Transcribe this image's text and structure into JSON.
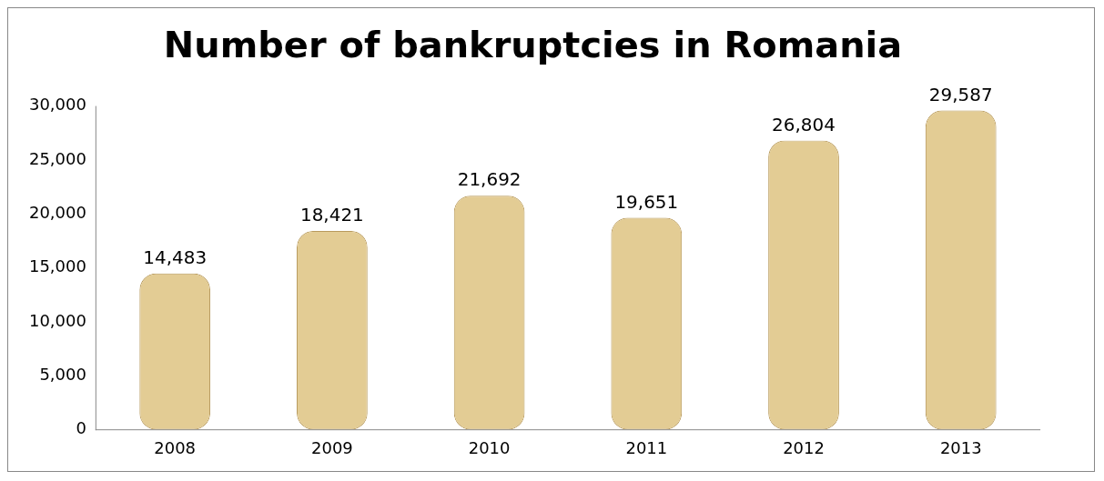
{
  "chart_data": {
    "type": "bar",
    "title": "Number of bankruptcies in Romania",
    "categories": [
      "2008",
      "2009",
      "2010",
      "2011",
      "2012",
      "2013"
    ],
    "values": [
      14483,
      18421,
      21692,
      19651,
      26804,
      29587
    ],
    "color": "#e3cc94",
    "ylim": [
      0,
      30000
    ],
    "yticks": [
      {
        "value": 0,
        "label": "0"
      },
      {
        "value": 5000,
        "label": "5,000"
      },
      {
        "value": 10000,
        "label": "10,000"
      },
      {
        "value": 15000,
        "label": "15,000"
      },
      {
        "value": 20000,
        "label": "20,000"
      },
      {
        "value": 25000,
        "label": "25,000"
      },
      {
        "value": 30000,
        "label": "30,000"
      }
    ],
    "value_labels": [
      "14,483",
      "18,421",
      "21,692",
      "19,651",
      "26,804",
      "29,587"
    ],
    "grid": false,
    "legend": false
  }
}
